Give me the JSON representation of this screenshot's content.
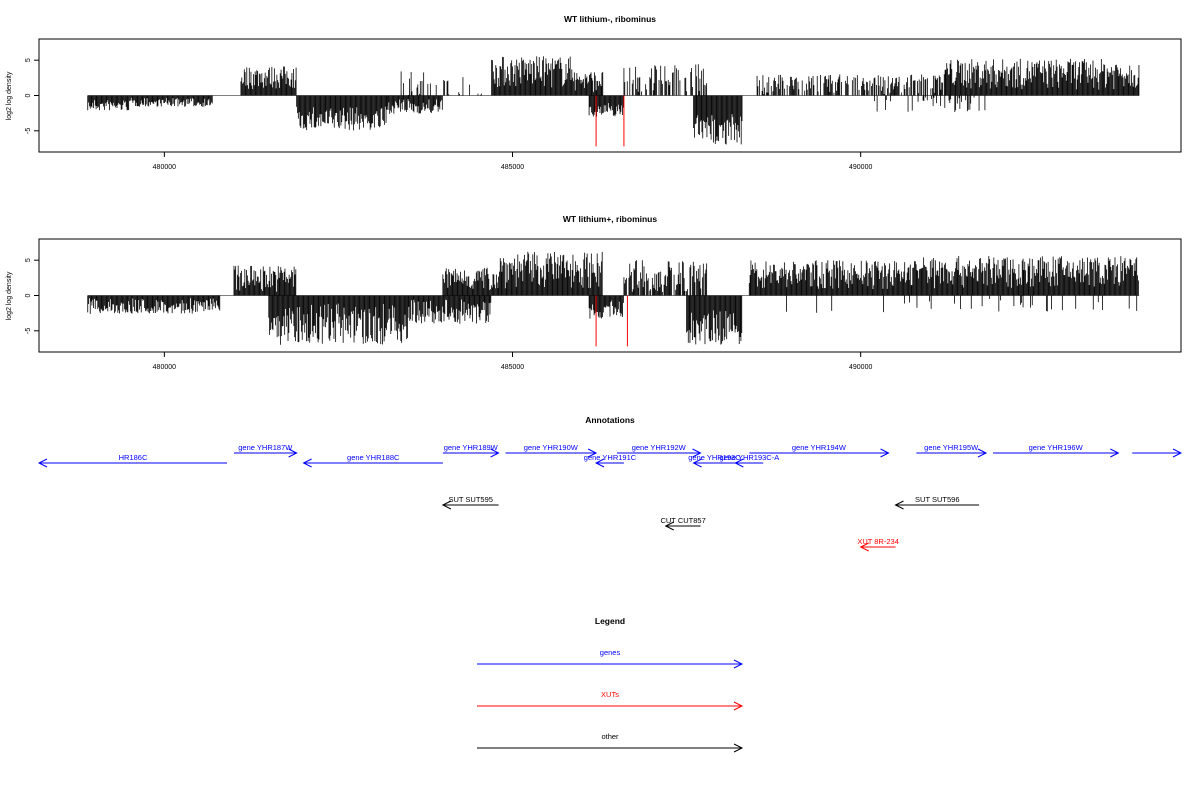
{
  "chart_data": [
    {
      "type": "bar",
      "title": "WT lithium-, ribominus",
      "ylabel": "log2 log density",
      "xlim": [
        478200,
        494600
      ],
      "ylim": [
        -8,
        8
      ],
      "x_ticks": [
        480000,
        485000,
        490000
      ],
      "y_ticks": [
        -5,
        0,
        5
      ],
      "segments": [
        {
          "from": 478900,
          "to": 479500,
          "strand": "-",
          "min": 0.5,
          "max": 2.2
        },
        {
          "from": 479500,
          "to": 480700,
          "strand": "-",
          "min": 0.3,
          "max": 1.6
        },
        {
          "from": 481100,
          "to": 481900,
          "strand": "+",
          "min": 0.8,
          "max": 4.2
        },
        {
          "from": 481900,
          "to": 483200,
          "strand": "-",
          "min": 1.5,
          "max": 5.0
        },
        {
          "from": 483200,
          "to": 484000,
          "strand": "-",
          "min": 0.5,
          "max": 2.6
        },
        {
          "from": 483400,
          "to": 484600,
          "strand": "+",
          "min": 0.0,
          "max": 3.5,
          "density": 0.25
        },
        {
          "from": 484700,
          "to": 485900,
          "strand": "+",
          "min": 1.0,
          "max": 5.6
        },
        {
          "from": 485900,
          "to": 486300,
          "strand": "+",
          "min": 0.5,
          "max": 3.5
        },
        {
          "from": 486100,
          "to": 486600,
          "strand": "-",
          "min": 1.0,
          "max": 3.0
        },
        {
          "from": 486600,
          "to": 487800,
          "strand": "+",
          "min": 0.5,
          "max": 4.5,
          "density": 0.6
        },
        {
          "from": 487600,
          "to": 488300,
          "strand": "-",
          "min": 2.5,
          "max": 7.0
        },
        {
          "from": 488500,
          "to": 491200,
          "strand": "+",
          "min": 0.2,
          "max": 3.0,
          "density": 0.7
        },
        {
          "from": 490200,
          "to": 491800,
          "strand": "-",
          "min": 0.2,
          "max": 2.5,
          "density": 0.25
        },
        {
          "from": 491200,
          "to": 494000,
          "strand": "+",
          "min": 0.8,
          "max": 5.2
        }
      ],
      "highlight_bars": [
        {
          "x": 486200,
          "y": -7.2
        },
        {
          "x": 486600,
          "y": -7.2
        }
      ]
    },
    {
      "type": "bar",
      "title": "WT lithium+, ribominus",
      "ylabel": "log2 log density",
      "xlim": [
        478200,
        494600
      ],
      "ylim": [
        -8,
        8
      ],
      "x_ticks": [
        480000,
        485000,
        490000
      ],
      "y_ticks": [
        -5,
        0,
        5
      ],
      "segments": [
        {
          "from": 478900,
          "to": 480800,
          "strand": "-",
          "min": 0.3,
          "max": 2.6
        },
        {
          "from": 481000,
          "to": 481900,
          "strand": "+",
          "min": 0.5,
          "max": 4.3
        },
        {
          "from": 481500,
          "to": 483500,
          "strand": "-",
          "min": 1.0,
          "max": 7.0
        },
        {
          "from": 483500,
          "to": 484700,
          "strand": "-",
          "min": 0.5,
          "max": 4.0
        },
        {
          "from": 484000,
          "to": 484800,
          "strand": "+",
          "min": 0.5,
          "max": 4.0
        },
        {
          "from": 484800,
          "to": 486300,
          "strand": "+",
          "min": 1.0,
          "max": 6.2
        },
        {
          "from": 486100,
          "to": 486600,
          "strand": "-",
          "min": 0.5,
          "max": 3.5
        },
        {
          "from": 486600,
          "to": 487800,
          "strand": "+",
          "min": 0.5,
          "max": 5.0,
          "density": 0.8
        },
        {
          "from": 487500,
          "to": 488300,
          "strand": "-",
          "min": 2.0,
          "max": 7.0
        },
        {
          "from": 488400,
          "to": 490700,
          "strand": "+",
          "min": 0.8,
          "max": 5.0
        },
        {
          "from": 490700,
          "to": 494000,
          "strand": "+",
          "min": 1.0,
          "max": 5.6
        },
        {
          "from": 488600,
          "to": 494000,
          "strand": "-",
          "min": 0.2,
          "max": 2.5,
          "density": 0.08
        }
      ],
      "highlight_bars": [
        {
          "x": 486200,
          "y": -7.2
        },
        {
          "x": 486650,
          "y": -7.2
        }
      ]
    }
  ],
  "annotations": {
    "title": "Annotations",
    "items": [
      {
        "label": "HR186C",
        "from": 478200,
        "to": 480900,
        "dir": "left",
        "row": 1,
        "type": "gene"
      },
      {
        "label": "gene YHR187W",
        "from": 481000,
        "to": 481900,
        "dir": "right",
        "row": 0,
        "type": "gene"
      },
      {
        "label": "gene YHR188C",
        "from": 482000,
        "to": 484000,
        "dir": "left",
        "row": 1,
        "type": "gene"
      },
      {
        "label": "gene YHR189W",
        "from": 484000,
        "to": 484800,
        "dir": "right",
        "row": 0,
        "type": "gene"
      },
      {
        "label": "gene YHR190W",
        "from": 484900,
        "to": 486200,
        "dir": "right",
        "row": 0,
        "type": "gene"
      },
      {
        "label": "gene YHR191C",
        "from": 486200,
        "to": 486600,
        "dir": "left",
        "row": 1,
        "type": "gene"
      },
      {
        "label": "gene YHR192W",
        "from": 486500,
        "to": 487700,
        "dir": "right",
        "row": 0,
        "type": "gene"
      },
      {
        "label": "gene YHR193C",
        "from": 487600,
        "to": 488200,
        "dir": "left",
        "row": 1,
        "type": "gene"
      },
      {
        "label": "gene YHR193C-A",
        "from": 488200,
        "to": 488600,
        "dir": "left",
        "row": 1,
        "type": "gene"
      },
      {
        "label": "gene YHR194W",
        "from": 488400,
        "to": 490400,
        "dir": "right",
        "row": 0,
        "type": "gene"
      },
      {
        "label": "gene YHR195W",
        "from": 490800,
        "to": 491800,
        "dir": "right",
        "row": 0,
        "type": "gene"
      },
      {
        "label": "gene YHR196W",
        "from": 491900,
        "to": 493700,
        "dir": "right",
        "row": 0,
        "type": "gene"
      },
      {
        "label": "",
        "from": 493900,
        "to": 494600,
        "dir": "right",
        "row": 0,
        "type": "gene"
      },
      {
        "label": "SUT SUT595",
        "from": 484000,
        "to": 484800,
        "dir": "left",
        "row": 3,
        "type": "other"
      },
      {
        "label": "SUT SUT596",
        "from": 490500,
        "to": 491700,
        "dir": "left",
        "row": 3,
        "type": "other"
      },
      {
        "label": "CUT CUT857",
        "from": 487200,
        "to": 487700,
        "dir": "left",
        "row": 4,
        "type": "other"
      },
      {
        "label": "XUT 8R-234",
        "from": 490000,
        "to": 490500,
        "dir": "left",
        "row": 5,
        "type": "xut"
      }
    ]
  },
  "legend": {
    "title": "Legend",
    "items": [
      {
        "label": "genes",
        "type": "gene"
      },
      {
        "label": "XUTs",
        "type": "xut"
      },
      {
        "label": "other",
        "type": "other"
      }
    ]
  },
  "colors": {
    "gene": "#0000ff",
    "xut": "#ff0000",
    "other": "#000000",
    "highlight": "#ff0000"
  }
}
